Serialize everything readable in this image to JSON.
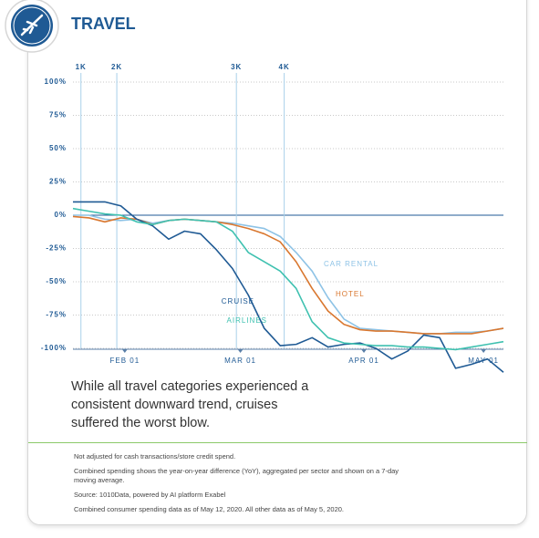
{
  "header": {
    "title": "TRAVEL"
  },
  "chart_data": {
    "type": "line",
    "x": [
      19,
      23,
      27,
      31,
      35,
      39,
      43,
      47,
      51,
      55,
      59,
      63,
      67,
      71,
      75,
      79,
      83,
      87,
      91,
      95,
      99,
      103,
      107,
      111,
      115,
      119,
      123,
      127
    ],
    "xlim": [
      19,
      127
    ],
    "xticks": [
      {
        "value": 32,
        "label": "FEB 01"
      },
      {
        "value": 61,
        "label": "MAR 01"
      },
      {
        "value": 92,
        "label": "APR 01"
      },
      {
        "value": 122,
        "label": "MAY 01"
      }
    ],
    "ylim": [
      -100,
      100
    ],
    "yticks": [
      {
        "value": 100,
        "label": "100%"
      },
      {
        "value": 75,
        "label": "75%"
      },
      {
        "value": 50,
        "label": "50%"
      },
      {
        "value": 25,
        "label": "25%"
      },
      {
        "value": 0,
        "label": "0%"
      },
      {
        "value": -25,
        "label": "-25%"
      },
      {
        "value": -50,
        "label": "-50%"
      },
      {
        "value": -75,
        "label": "-75%"
      },
      {
        "value": -100,
        "label": "-100%"
      }
    ],
    "grid": true,
    "annotations": [
      {
        "x": 21,
        "label": "1K"
      },
      {
        "x": 30,
        "label": "2K"
      },
      {
        "x": 60,
        "label": "3K"
      },
      {
        "x": 72,
        "label": "4K"
      }
    ],
    "series": [
      {
        "name": "CAR RENTAL",
        "color": "#8ec3e6",
        "values": [
          0,
          0,
          -3,
          -4,
          -3,
          -6,
          -4,
          -3,
          -4,
          -5,
          -6,
          -8,
          -10,
          -16,
          -28,
          -42,
          -62,
          -78,
          -85,
          -86,
          -87,
          -88,
          -89,
          -89,
          -88,
          -88,
          -87,
          -85
        ]
      },
      {
        "name": "HOTEL",
        "color": "#d9772f",
        "values": [
          -1,
          -2,
          -5,
          -2,
          -3,
          -7,
          -4,
          -3,
          -4,
          -5,
          -7,
          -10,
          -14,
          -20,
          -35,
          -55,
          -72,
          -82,
          -86,
          -87,
          -87,
          -88,
          -89,
          -89,
          -89,
          -89,
          -87,
          -85
        ]
      },
      {
        "name": "CRUISE",
        "color": "#1f5a94",
        "values": [
          10,
          10,
          10,
          7,
          -3,
          -8,
          -18,
          -12,
          -14,
          -26,
          -40,
          -60,
          -85,
          -98,
          -97,
          -92,
          -99,
          -97,
          -96,
          -100,
          -108,
          -102,
          -90,
          -92,
          -115,
          -112,
          -108,
          -118
        ]
      },
      {
        "name": "AIRLINES",
        "color": "#3fc1b0",
        "values": [
          5,
          3,
          1,
          0,
          -5,
          -7,
          -4,
          -3,
          -4,
          -5,
          -12,
          -28,
          -35,
          -42,
          -55,
          -80,
          -92,
          -96,
          -97,
          -98,
          -98,
          -99,
          -99,
          -100,
          -101,
          -99,
          -97,
          -95
        ]
      }
    ]
  },
  "caption": "While all travel categories experienced a consistent downward trend, cruises suffered the worst blow.",
  "notes": [
    "Not adjusted for cash transactions/store credit spend.",
    "Combined spending shows the year-on-year difference (YoY), aggregated per sector and shown on a 7-day moving average.",
    "Source: 1010Data, powered by AI platform Exabel",
    "Combined consumer spending data as of May 12, 2020. All other data as of May 5, 2020."
  ]
}
